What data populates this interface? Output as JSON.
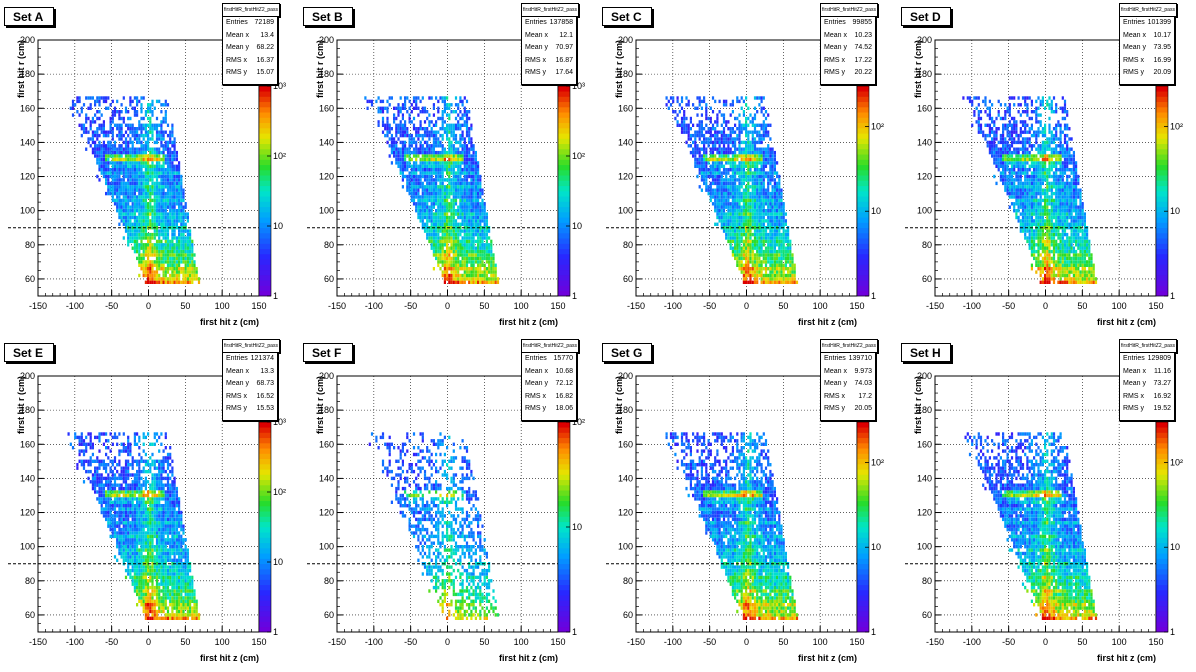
{
  "chart_data": [
    {
      "type": "heatmap",
      "set_label": "Set A",
      "hist_name": "firstHitR_firstHitZ2_pass",
      "xlabel": "first hit z (cm)",
      "ylabel": "first hit r (cm)",
      "xlim": [
        -150,
        150
      ],
      "ylim": [
        50,
        200
      ],
      "x_ticks": [
        "-150",
        "-100",
        "-50",
        "0",
        "50",
        "100",
        "150"
      ],
      "y_ticks": [
        "60",
        "80",
        "100",
        "120",
        "140",
        "160",
        "180",
        "200"
      ],
      "z_ticks": [
        "1",
        "10",
        "10²",
        "10³"
      ],
      "z_tick_values": [
        1,
        10,
        100,
        1000
      ],
      "z_max": 1000,
      "dashed_line_y": 90,
      "upper_band_visible": true,
      "density_scale": 1.0,
      "stats": [
        {
          "key": "Entries",
          "value": "72189"
        },
        {
          "key": "Mean x",
          "value": "13.4"
        },
        {
          "key": "Mean y",
          "value": "68.22"
        },
        {
          "key": "RMS x",
          "value": "16.37"
        },
        {
          "key": "RMS y",
          "value": "15.07"
        }
      ]
    },
    {
      "type": "heatmap",
      "set_label": "Set B",
      "hist_name": "firstHitR_firstHitZ2_pass",
      "xlabel": "first hit z (cm)",
      "ylabel": "first hit r (cm)",
      "xlim": [
        -150,
        150
      ],
      "ylim": [
        50,
        200
      ],
      "x_ticks": [
        "-150",
        "-100",
        "-50",
        "0",
        "50",
        "100",
        "150"
      ],
      "y_ticks": [
        "60",
        "80",
        "100",
        "120",
        "140",
        "160",
        "180",
        "200"
      ],
      "z_ticks": [
        "1",
        "10",
        "10²",
        "10³"
      ],
      "z_tick_values": [
        1,
        10,
        100,
        1000
      ],
      "z_max": 1000,
      "dashed_line_y": 90,
      "upper_band_visible": true,
      "density_scale": 1.1,
      "stats": [
        {
          "key": "Entries",
          "value": "137858"
        },
        {
          "key": "Mean x",
          "value": "12.1"
        },
        {
          "key": "Mean y",
          "value": "70.97"
        },
        {
          "key": "RMS x",
          "value": "16.87"
        },
        {
          "key": "RMS y",
          "value": "17.64"
        }
      ]
    },
    {
      "type": "heatmap",
      "set_label": "Set C",
      "hist_name": "firstHitR_firstHitZ2_pass",
      "xlabel": "first hit z (cm)",
      "ylabel": "first hit r (cm)",
      "xlim": [
        -150,
        150
      ],
      "ylim": [
        50,
        200
      ],
      "x_ticks": [
        "-150",
        "-100",
        "-50",
        "0",
        "50",
        "100",
        "150"
      ],
      "y_ticks": [
        "60",
        "80",
        "100",
        "120",
        "140",
        "160",
        "180",
        "200"
      ],
      "z_ticks": [
        "1",
        "10",
        "10²"
      ],
      "z_tick_values": [
        1,
        10,
        100
      ],
      "z_max": 300,
      "dashed_line_y": 90,
      "upper_band_visible": true,
      "density_scale": 1.05,
      "stats": [
        {
          "key": "Entries",
          "value": "99855"
        },
        {
          "key": "Mean x",
          "value": "10.23"
        },
        {
          "key": "Mean y",
          "value": "74.52"
        },
        {
          "key": "RMS x",
          "value": "17.22"
        },
        {
          "key": "RMS y",
          "value": "20.22"
        }
      ]
    },
    {
      "type": "heatmap",
      "set_label": "Set D",
      "hist_name": "firstHitR_firstHitZ2_pass",
      "xlabel": "first hit z (cm)",
      "ylabel": "first hit r (cm)",
      "xlim": [
        -150,
        150
      ],
      "ylim": [
        50,
        200
      ],
      "x_ticks": [
        "-150",
        "-100",
        "-50",
        "0",
        "50",
        "100",
        "150"
      ],
      "y_ticks": [
        "60",
        "80",
        "100",
        "120",
        "140",
        "160",
        "180",
        "200"
      ],
      "z_ticks": [
        "1",
        "10",
        "10²"
      ],
      "z_tick_values": [
        1,
        10,
        100
      ],
      "z_max": 300,
      "dashed_line_y": 90,
      "upper_band_visible": true,
      "density_scale": 1.05,
      "stats": [
        {
          "key": "Entries",
          "value": "101399"
        },
        {
          "key": "Mean x",
          "value": "10.17"
        },
        {
          "key": "Mean y",
          "value": "73.95"
        },
        {
          "key": "RMS x",
          "value": "16.99"
        },
        {
          "key": "RMS y",
          "value": "20.09"
        }
      ]
    },
    {
      "type": "heatmap",
      "set_label": "Set E",
      "hist_name": "firstHitR_firstHitZ2_pass",
      "xlabel": "first hit z (cm)",
      "ylabel": "first hit r (cm)",
      "xlim": [
        -150,
        150
      ],
      "ylim": [
        50,
        200
      ],
      "x_ticks": [
        "-150",
        "-100",
        "-50",
        "0",
        "50",
        "100",
        "150"
      ],
      "y_ticks": [
        "60",
        "80",
        "100",
        "120",
        "140",
        "160",
        "180",
        "200"
      ],
      "z_ticks": [
        "1",
        "10",
        "10²",
        "10³"
      ],
      "z_tick_values": [
        1,
        10,
        100,
        1000
      ],
      "z_max": 1000,
      "dashed_line_y": 90,
      "upper_band_visible": true,
      "density_scale": 1.1,
      "stats": [
        {
          "key": "Entries",
          "value": "121374"
        },
        {
          "key": "Mean x",
          "value": "13.3"
        },
        {
          "key": "Mean y",
          "value": "68.73"
        },
        {
          "key": "RMS x",
          "value": "16.52"
        },
        {
          "key": "RMS y",
          "value": "15.53"
        }
      ]
    },
    {
      "type": "heatmap",
      "set_label": "Set F",
      "hist_name": "firstHitR_firstHitZ2_pass",
      "xlabel": "first hit z (cm)",
      "ylabel": "first hit r (cm)",
      "xlim": [
        -150,
        150
      ],
      "ylim": [
        50,
        200
      ],
      "x_ticks": [
        "-150",
        "-100",
        "-50",
        "0",
        "50",
        "100",
        "150"
      ],
      "y_ticks": [
        "60",
        "80",
        "100",
        "120",
        "140",
        "160",
        "180",
        "200"
      ],
      "z_ticks": [
        "1",
        "10",
        "10²"
      ],
      "z_tick_values": [
        1,
        10,
        100
      ],
      "z_max": 100,
      "dashed_line_y": 90,
      "upper_band_visible": true,
      "density_scale": 0.55,
      "stats": [
        {
          "key": "Entries",
          "value": "15770"
        },
        {
          "key": "Mean x",
          "value": "10.68"
        },
        {
          "key": "Mean y",
          "value": "72.12"
        },
        {
          "key": "RMS x",
          "value": "16.82"
        },
        {
          "key": "RMS y",
          "value": "18.06"
        }
      ]
    },
    {
      "type": "heatmap",
      "set_label": "Set G",
      "hist_name": "firstHitR_firstHitZ2_pass",
      "xlabel": "first hit z (cm)",
      "ylabel": "first hit r (cm)",
      "xlim": [
        -150,
        150
      ],
      "ylim": [
        50,
        200
      ],
      "x_ticks": [
        "-150",
        "-100",
        "-50",
        "0",
        "50",
        "100",
        "150"
      ],
      "y_ticks": [
        "60",
        "80",
        "100",
        "120",
        "140",
        "160",
        "180",
        "200"
      ],
      "z_ticks": [
        "1",
        "10",
        "10²"
      ],
      "z_tick_values": [
        1,
        10,
        100
      ],
      "z_max": 300,
      "dashed_line_y": 90,
      "upper_band_visible": true,
      "density_scale": 1.1,
      "stats": [
        {
          "key": "Entries",
          "value": "139710"
        },
        {
          "key": "Mean x",
          "value": "9.973"
        },
        {
          "key": "Mean y",
          "value": "74.03"
        },
        {
          "key": "RMS x",
          "value": "17.2"
        },
        {
          "key": "RMS y",
          "value": "20.05"
        }
      ]
    },
    {
      "type": "heatmap",
      "set_label": "Set H",
      "hist_name": "firstHitR_firstHitZ2_pass",
      "xlabel": "first hit z (cm)",
      "ylabel": "first hit r (cm)",
      "xlim": [
        -150,
        150
      ],
      "ylim": [
        50,
        200
      ],
      "x_ticks": [
        "-150",
        "-100",
        "-50",
        "0",
        "50",
        "100",
        "150"
      ],
      "y_ticks": [
        "60",
        "80",
        "100",
        "120",
        "140",
        "160",
        "180",
        "200"
      ],
      "z_ticks": [
        "1",
        "10",
        "10²"
      ],
      "z_tick_values": [
        1,
        10,
        100
      ],
      "z_max": 300,
      "dashed_line_y": 90,
      "upper_band_visible": true,
      "density_scale": 1.1,
      "stats": [
        {
          "key": "Entries",
          "value": "129809"
        },
        {
          "key": "Mean x",
          "value": "11.16"
        },
        {
          "key": "Mean y",
          "value": "73.27"
        },
        {
          "key": "RMS x",
          "value": "16.92"
        },
        {
          "key": "RMS y",
          "value": "19.52"
        }
      ]
    }
  ]
}
